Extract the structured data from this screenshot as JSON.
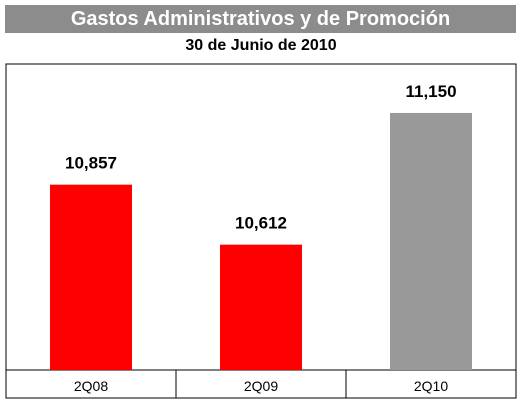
{
  "header": {
    "title": "Gastos Administrativos y de Promoción",
    "subtitle": "30 de Junio de 2010"
  },
  "colors": {
    "title_band": "#8c8c8c",
    "bar_highlight": "#ff0000",
    "bar_current": "#999999"
  },
  "chart_data": {
    "type": "bar",
    "title": "Gastos Administrativos y de Promoción",
    "subtitle": "30 de Junio de 2010",
    "categories": [
      "2Q08",
      "2Q09",
      "2Q10"
    ],
    "values": [
      10857,
      10612,
      11150
    ],
    "value_labels": [
      "10,857",
      "10,612",
      "11,150"
    ],
    "bar_colors": [
      "#ff0000",
      "#ff0000",
      "#999999"
    ],
    "ylim": [
      10100,
      11350
    ],
    "grid": false,
    "legend": "none"
  }
}
